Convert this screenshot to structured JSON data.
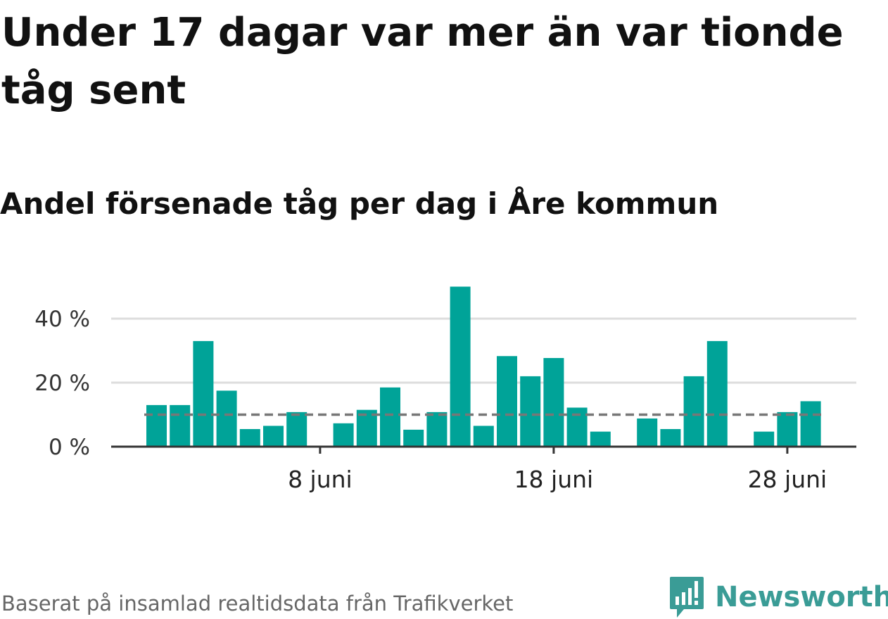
{
  "title": "Under 17 dagar var mer än var tionde tåg sent",
  "subtitle": "Andel försenade tåg per dag i Åre kommun",
  "source": "Baserat på insamlad realtidsdata från Trafikverket",
  "brand": "Newsworthy",
  "colors": {
    "bar": "#00a398",
    "reference_line": "#777777",
    "grid": "#dddddd",
    "axis": "#333333",
    "brand": "#3a9c96"
  },
  "chart_data": {
    "type": "bar",
    "x": [
      "2024-06-01",
      "2024-06-02",
      "2024-06-03",
      "2024-06-04",
      "2024-06-05",
      "2024-06-06",
      "2024-06-07",
      "2024-06-08",
      "2024-06-09",
      "2024-06-10",
      "2024-06-11",
      "2024-06-12",
      "2024-06-13",
      "2024-06-14",
      "2024-06-15",
      "2024-06-16",
      "2024-06-17",
      "2024-06-18",
      "2024-06-19",
      "2024-06-20",
      "2024-06-21",
      "2024-06-22",
      "2024-06-23",
      "2024-06-24",
      "2024-06-25",
      "2024-06-26",
      "2024-06-27",
      "2024-06-28",
      "2024-06-29",
      "2024-06-30"
    ],
    "values": [
      13,
      13,
      33,
      17.5,
      5.5,
      6.5,
      10.8,
      null,
      7.3,
      11.5,
      18.5,
      5.3,
      10.8,
      50,
      6.5,
      28.3,
      22,
      27.7,
      12.2,
      4.7,
      null,
      8.8,
      5.5,
      22,
      33,
      null,
      4.7,
      10.8,
      14.2,
      null
    ],
    "reference_value": 10,
    "yticks": [
      {
        "value": 0,
        "label": "0 %"
      },
      {
        "value": 20,
        "label": "20 %"
      },
      {
        "value": 40,
        "label": "40 %"
      }
    ],
    "xticks": [
      {
        "index": 7,
        "label": "8 juni"
      },
      {
        "index": 17,
        "label": "18 juni"
      },
      {
        "index": 27,
        "label": "28 juni"
      }
    ],
    "ylim": [
      0,
      50
    ],
    "grid": true
  }
}
